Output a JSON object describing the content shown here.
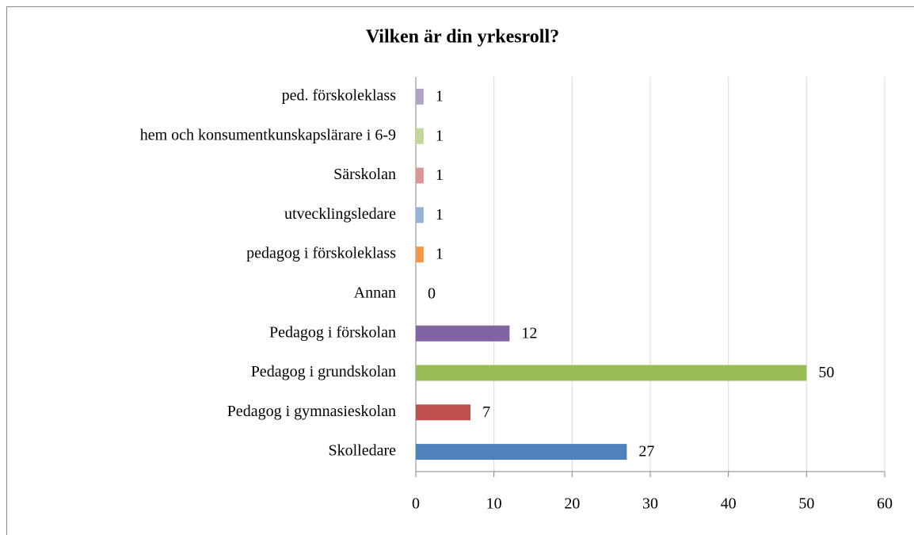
{
  "chart_data": {
    "type": "bar",
    "orientation": "horizontal",
    "title": "Vilken är din yrkesroll?",
    "categories": [
      "Skolledare",
      "Pedagog i gymnasieskolan",
      "Pedagog i grundskolan",
      "Pedagog i förskolan",
      "Annan",
      "pedagog i förskoleklass",
      "utvecklingsledare",
      "Särskolan",
      "hem och konsumentkunskapslärare i 6-9",
      "ped. förskoleklass"
    ],
    "values": [
      27,
      7,
      50,
      12,
      0,
      1,
      1,
      1,
      1,
      1
    ],
    "colors": [
      "#4f81bd",
      "#c0504d",
      "#9bbb59",
      "#8064a2",
      "#4bacc6",
      "#f79646",
      "#95b3d7",
      "#d99694",
      "#c3d69b",
      "#b3a2c7"
    ],
    "xlim": [
      0,
      60
    ],
    "xticks": [
      0,
      10,
      20,
      30,
      40,
      50,
      60
    ],
    "grid": true
  }
}
